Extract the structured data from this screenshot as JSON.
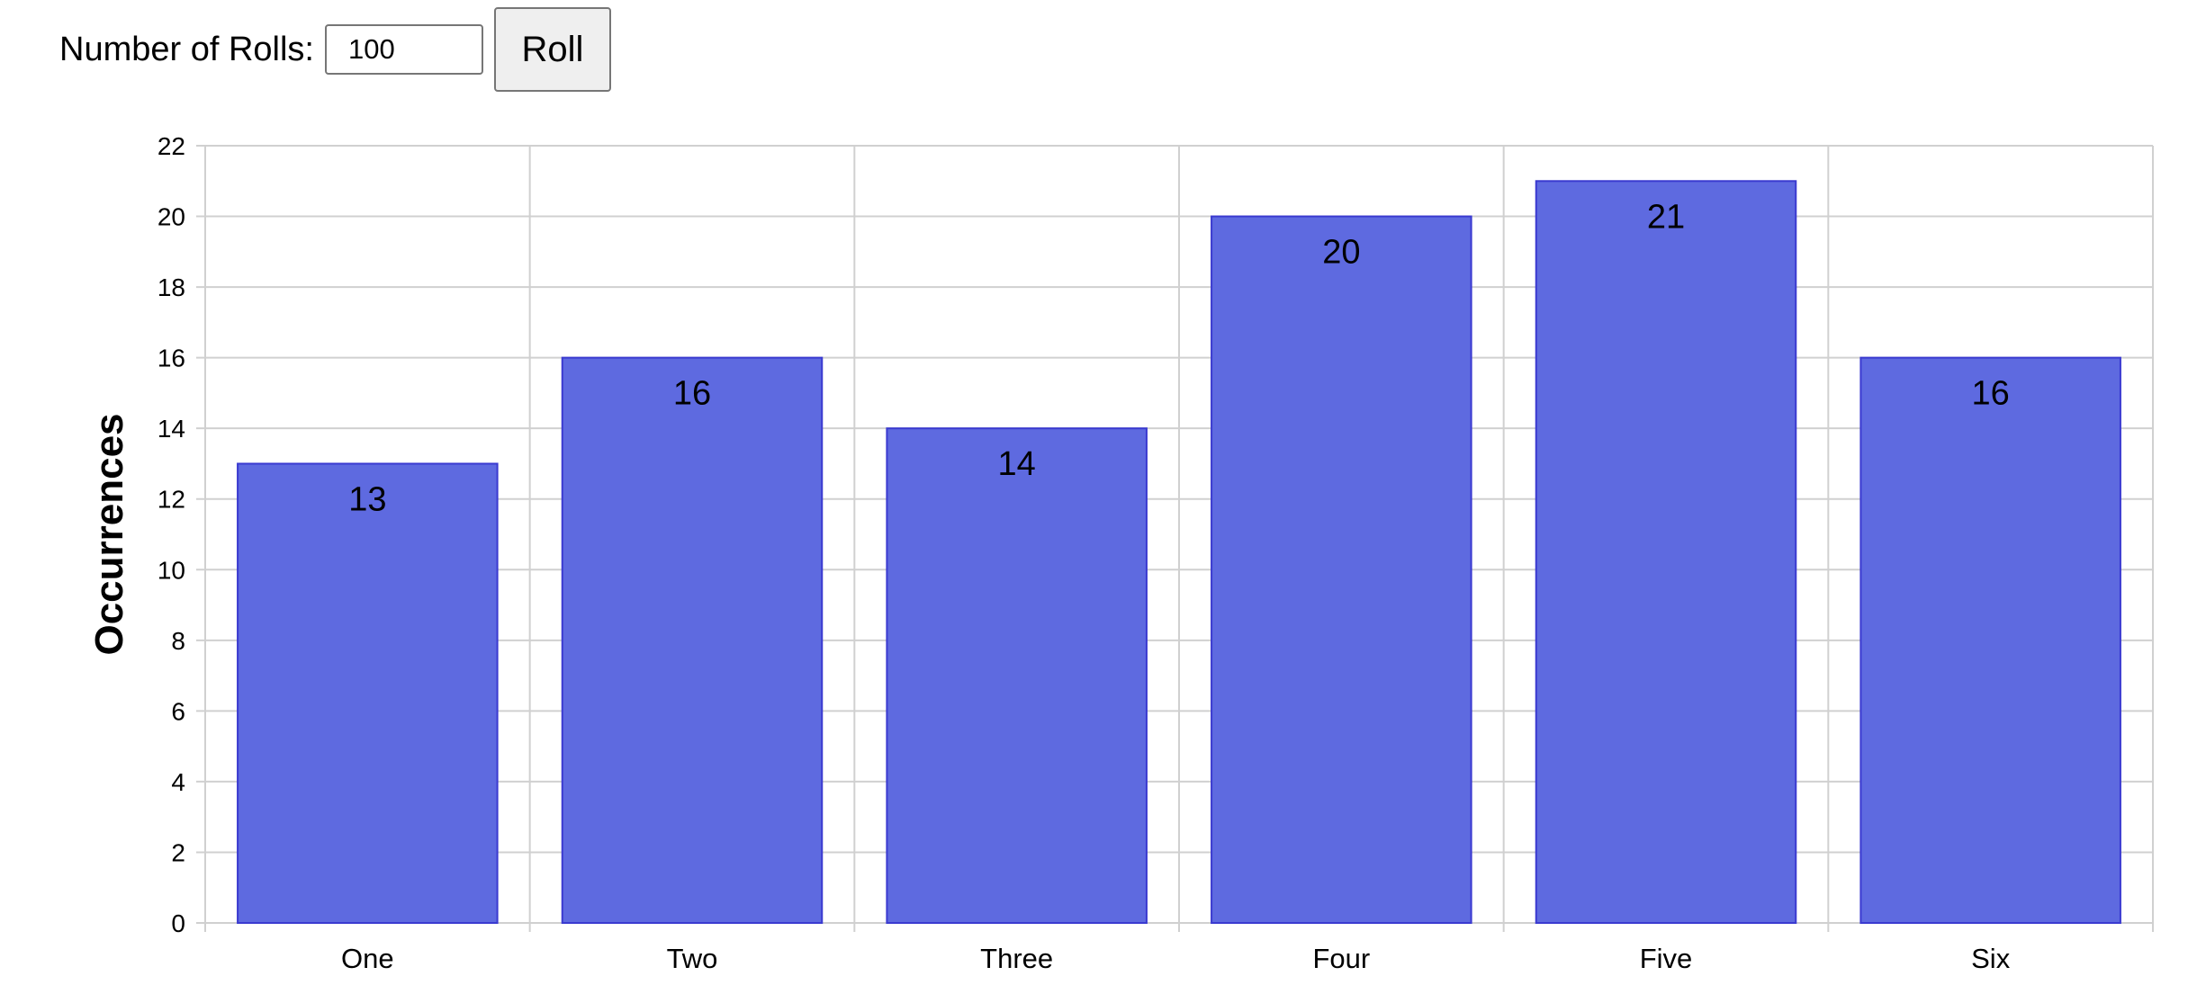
{
  "controls": {
    "rolls_label": "Number of Rolls:",
    "rolls_value": "100",
    "roll_button": "Roll"
  },
  "chart_data": {
    "type": "bar",
    "categories": [
      "One",
      "Two",
      "Three",
      "Four",
      "Five",
      "Six"
    ],
    "values": [
      13,
      16,
      14,
      20,
      21,
      16
    ],
    "ylabel": "Occurrences",
    "xlabel": "",
    "ylim": [
      0,
      22
    ],
    "yticks": [
      0,
      2,
      4,
      6,
      8,
      10,
      12,
      14,
      16,
      18,
      20,
      22
    ],
    "grid": true,
    "data_labels": true,
    "bar_color": "#5e6ae0",
    "bar_border_color": "#3a3ad0",
    "grid_color": "#d0d0d0"
  }
}
